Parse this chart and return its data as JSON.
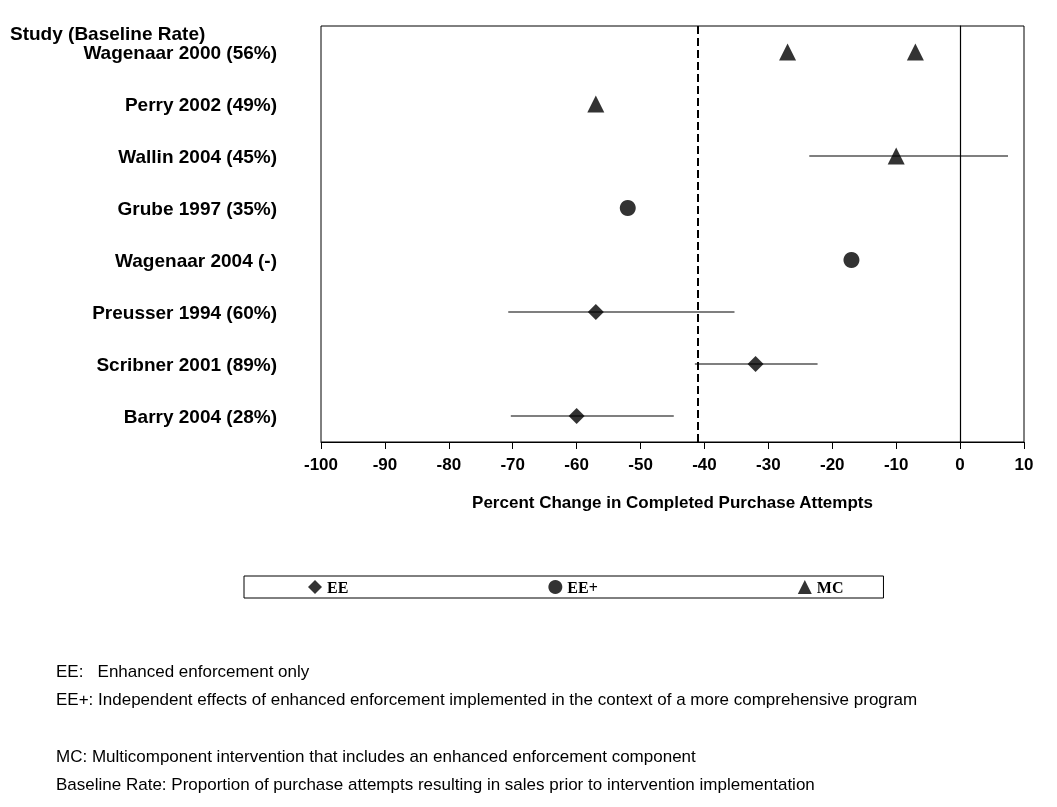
{
  "chart_data": {
    "type": "scatter",
    "orientation": "horizontal",
    "ylabel": "Study (Baseline Rate)",
    "xlabel": "Percent Change in Completed Purchase Attempts",
    "categories": [
      "Wagenaar 2000 (56%)",
      "Perry 2002 (49%)",
      "Wallin 2004 (45%)",
      "Grube 1997 (35%)",
      "Wagenaar 2004 (-)",
      "Preusser 1994 (60%)",
      "Scribner 2001 (89%)",
      "Barry 2004 (28%)"
    ],
    "xlim": [
      -100,
      10
    ],
    "xticks": [
      -100,
      -90,
      -80,
      -70,
      -60,
      -50,
      -40,
      -30,
      -20,
      -10,
      0,
      10
    ],
    "grid": false,
    "legend": "bottom",
    "series": [
      {
        "name": "EE",
        "color": "#000000",
        "marker": "diamond",
        "values": [
          null,
          null,
          null,
          null,
          null,
          -57,
          -32,
          -60
        ],
        "errors": [
          null,
          null,
          null,
          null,
          null,
          [
            -70.7,
            -35.3
          ],
          [
            -41.5,
            -22.3
          ],
          [
            -70.3,
            -44.8
          ]
        ]
      },
      {
        "name": "EE+",
        "color": "#000000",
        "marker": "circle",
        "values": [
          null,
          null,
          null,
          -52,
          -17,
          null,
          null,
          null
        ]
      },
      {
        "name": "MC",
        "color": "#000000",
        "marker": "triangle",
        "values": [
          -27,
          -57,
          -10,
          null,
          null,
          null,
          null,
          null
        ],
        "errors": [
          null,
          null,
          [
            -23.6,
            7.5
          ],
          null,
          null,
          null,
          null,
          null
        ]
      },
      {
        "color": "#000000",
        "marker": "triangle",
        "values": [
          -7,
          null,
          null,
          null,
          null,
          null,
          null,
          null
        ]
      }
    ],
    "ref_lines": [
      {
        "axis": "x",
        "value": -41,
        "line_style": "dashed"
      },
      {
        "axis": "x",
        "value": 0,
        "line_style": "solid"
      }
    ],
    "annotations": [
      "EE:   Enhanced enforcement only",
      "EE+: Independent effects of enhanced enforcement implemented in the context of a more comprehensive program",
      "MC: Multicomponent intervention that includes an enhanced enforcement component",
      "Baseline Rate: Proportion of purchase attempts resulting in sales prior to intervention implementation"
    ]
  }
}
